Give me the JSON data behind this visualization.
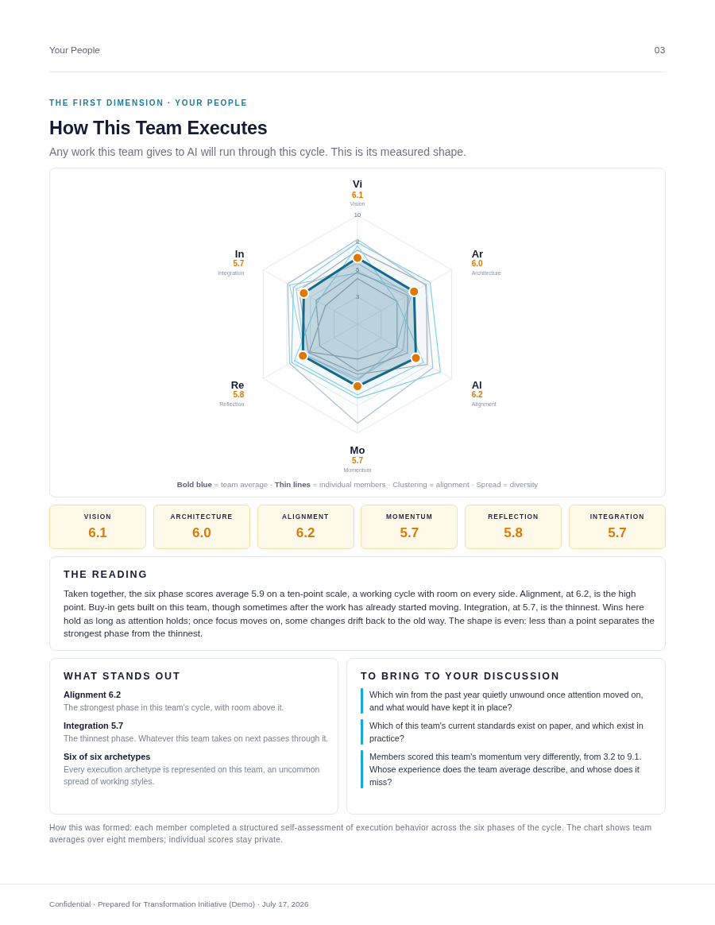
{
  "chart_data": [
    {
      "type": "radar",
      "title": "How This Team Executes",
      "subtitle": "Any work this team gives to AI will run through this cycle. This is its measured shape.",
      "categories": [
        "Vision",
        "Architecture",
        "Alignment",
        "Momentum",
        "Reflection",
        "Integration"
      ],
      "series": [
        {
          "color": "#17698a",
          "colors": [
            "#e07800",
            "#e07800",
            "#e07800",
            "#e07800",
            "#e07800",
            "#e07800"
          ],
          "marker": "circle",
          "values": [
            6.1,
            6.0,
            6.2,
            5.7,
            5.8,
            5.7
          ]
        },
        {
          "color": "#a9bfd3",
          "values": [
            7.8,
            7.2,
            8.0,
            9.1,
            7.2,
            7.4
          ]
        },
        {
          "color": "#7fcfe8",
          "values": [
            7.5,
            7.7,
            8.8,
            6.8,
            7.0,
            6.8
          ]
        },
        {
          "color": "#8fd4ea",
          "values": [
            7.2,
            4.2,
            7.0,
            6.5,
            6.7,
            4.2
          ]
        },
        {
          "color": "#a8adb5",
          "values": [
            6.8,
            7.3,
            7.4,
            4.6,
            5.2,
            6.2
          ]
        },
        {
          "color": "#a3a9b2",
          "values": [
            4.8,
            5.3,
            5.3,
            4.3,
            4.0,
            4.4
          ]
        },
        {
          "color": "#9ea6b0",
          "values": [
            4.2,
            4.2,
            4.2,
            3.2,
            5.1,
            3.4
          ]
        },
        {
          "color": "#b9cad8",
          "values": [
            5.6,
            5.5,
            4.8,
            5.0,
            5.6,
            6.5
          ]
        },
        {
          "color": "#9fd6ea",
          "values": [
            4.7,
            5.8,
            4.1,
            5.2,
            5.6,
            7.2
          ]
        }
      ],
      "ylim": [
        0,
        10
      ],
      "yticks": [
        {
          "value": 2.5,
          "label": "3"
        },
        5,
        {
          "value": 7.5,
          "label": "8"
        },
        10
      ],
      "grid": true,
      "annotations": [
        "Your People",
        "03",
        "THE FIRST DIMENSION · YOUR PEOPLE",
        {
          "text": "Vi",
          "x": "Vision"
        },
        {
          "text": "6.1",
          "x": "Vision"
        },
        {
          "text": "Ar",
          "x": "Architecture"
        },
        {
          "text": "6.0",
          "x": "Architecture"
        },
        {
          "text": "Al",
          "x": "Alignment"
        },
        {
          "text": "6.2",
          "x": "Alignment"
        },
        {
          "text": "Mo",
          "x": "Momentum"
        },
        {
          "text": "5.7",
          "x": "Momentum"
        },
        {
          "text": "Re",
          "x": "Reflection"
        },
        {
          "text": "5.8",
          "x": "Reflection"
        },
        {
          "text": "In",
          "x": "Integration"
        },
        {
          "text": "5.7",
          "x": "Integration"
        },
        "Bold blue = team average · Thin lines = individual members · Clustering = alignment · Spread = diversity",
        "How this was formed: each member completed a structured self-assessment of execution behavior across the six phases of the cycle. The chart shows team averages over eight members; individual scores stay private.",
        "Confidential · Prepared for Transformation Initiative (Demo) · July 17, 2026"
      ]
    },
    {
      "type": "other",
      "annotations": [
        "VISION",
        "6.1",
        "ARCHITECTURE",
        "6.0",
        "ALIGNMENT",
        "6.2",
        "MOMENTUM",
        "5.7",
        "REFLECTION",
        "5.8",
        "INTEGRATION",
        "5.7"
      ]
    },
    {
      "type": "other",
      "title": "THE READING",
      "annotations": [
        "Taken together, the six phase scores average 5.9 on a ten-point scale, a working cycle with room on every side. Alignment, at 6.2, is the high point. Buy-in gets built on this team, though sometimes after the work has already started moving. Integration, at 5.7, is the thinnest. Wins here hold as long as attention holds; once focus moves on, some changes drift back to the old way. The shape is even: less than a point separates the strongest phase from the thinnest."
      ]
    },
    {
      "type": "other",
      "title": "WHAT STANDS OUT",
      "annotations": [
        "Alignment 6.2",
        "The strongest phase in this team's cycle, with room above it.",
        "Integration 5.7",
        "The thinnest phase. Whatever this team takes on next passes through it.",
        "Six of six archetypes",
        "Every execution archetype is represented on this team, an uncommon spread of working styles."
      ]
    },
    {
      "type": "other",
      "title": "TO BRING TO YOUR DISCUSSION",
      "annotations": [
        "Which win from the past year quietly unwound once attention moved on, and what would have kept it in place?",
        "Which of this team's current standards exist on paper, and which exist in practice?",
        "Members scored this team's momentum very differently, from 3.2 to 9.1. Whose experience does the team average describe, and whose does it miss?"
      ]
    }
  ]
}
